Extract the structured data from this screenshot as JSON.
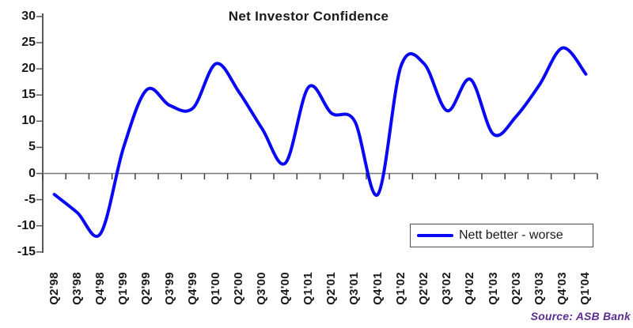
{
  "chart_data": {
    "type": "line",
    "title": "Net Investor Confidence",
    "categories": [
      "Q2'98",
      "Q3'98",
      "Q4'98",
      "Q1'99",
      "Q2'99",
      "Q3'99",
      "Q4'99",
      "Q1'00",
      "Q2'00",
      "Q3'00",
      "Q4'00",
      "Q1'01",
      "Q2'01",
      "Q3'01",
      "Q4'01",
      "Q1'02",
      "Q2'02",
      "Q3'02",
      "Q4'02",
      "Q1'03",
      "Q2'03",
      "Q3'03",
      "Q4'03",
      "Q1'04"
    ],
    "series": [
      {
        "name": "Nett better - worse",
        "color": "#0808f5",
        "values": [
          -4,
          -7.5,
          -11.5,
          5,
          16,
          13,
          12.5,
          21,
          15.5,
          8.5,
          2,
          16.5,
          11.5,
          10,
          -4,
          20.5,
          21,
          12,
          18,
          7.5,
          11,
          17,
          24,
          19
        ]
      }
    ],
    "xlabel": "",
    "ylabel": "",
    "ylim": [
      -15,
      30
    ],
    "yticks": [
      30,
      25,
      20,
      15,
      10,
      5,
      0,
      -5,
      -10,
      -15
    ],
    "grid": "zero-line-only",
    "line_smoothing": true,
    "legend_position": "inside-bottom-right",
    "source": "Source: ASB Bank"
  },
  "colors": {
    "line": "#0808f5",
    "axis": "#595959",
    "tick": "#404040",
    "text": "#1a1a1a",
    "source_text": "#5c2d91",
    "background": "#ffffff"
  }
}
